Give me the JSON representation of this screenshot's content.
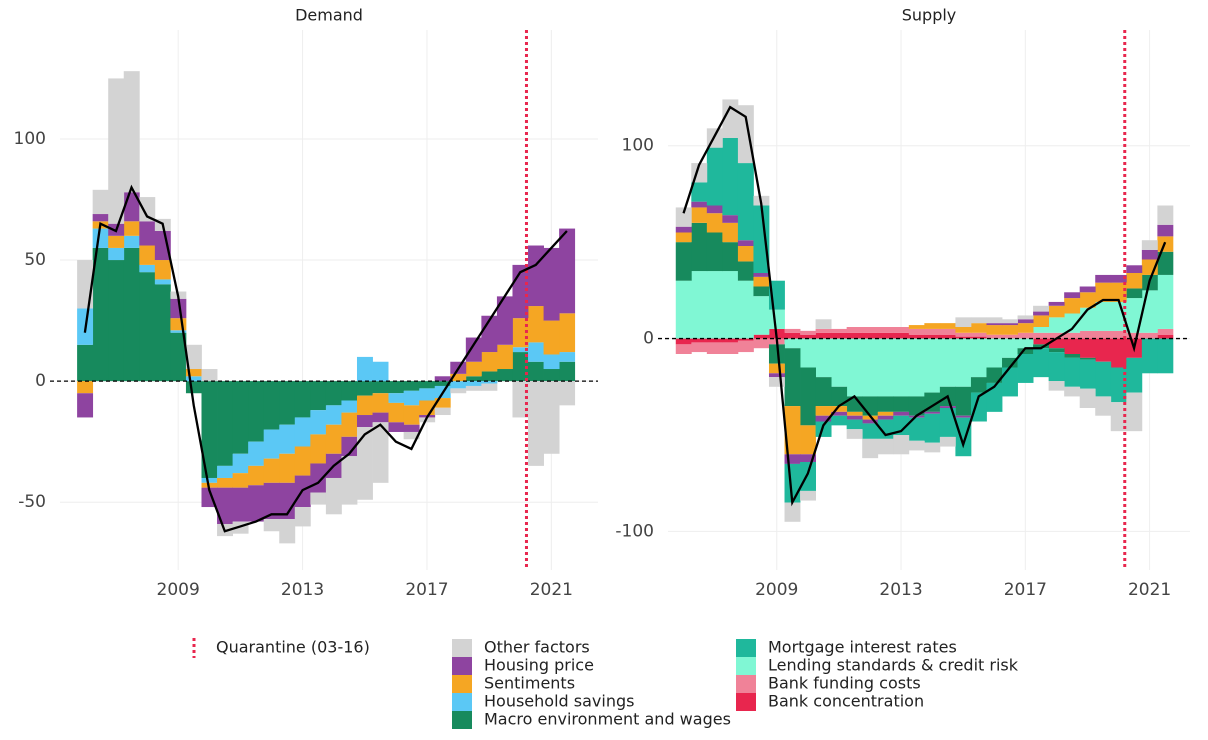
{
  "chart_data": [
    {
      "type": "bar",
      "title": "Demand",
      "x": [
        2006,
        2006.5,
        2007,
        2007.5,
        2008,
        2008.5,
        2009,
        2009.5,
        2010,
        2010.5,
        2011,
        2011.5,
        2012,
        2012.5,
        2013,
        2013.5,
        2014,
        2014.5,
        2015,
        2015.5,
        2016,
        2016.5,
        2017,
        2017.5,
        2018,
        2018.5,
        2019,
        2019.5,
        2020,
        2020.5,
        2021,
        2021.5
      ],
      "series": [
        {
          "name": "Other factors",
          "color": "#d3d3d3",
          "values": [
            20,
            10,
            60,
            50,
            10,
            5,
            3,
            10,
            5,
            -5,
            -5,
            0,
            -5,
            -10,
            -8,
            -5,
            -15,
            -20,
            -30,
            -25,
            0,
            -3,
            -2,
            -3,
            -2,
            -2,
            -3,
            0,
            -15,
            -35,
            -30,
            -10
          ]
        },
        {
          "name": "Housing price",
          "color": "#8e44a0",
          "values": [
            -10,
            3,
            5,
            12,
            10,
            12,
            8,
            0,
            -8,
            -15,
            -14,
            -15,
            -15,
            -15,
            -13,
            -12,
            -10,
            -8,
            -5,
            -4,
            -4,
            -3,
            -1,
            2,
            5,
            10,
            15,
            20,
            22,
            25,
            30,
            35
          ]
        },
        {
          "name": "Sentiments",
          "color": "#f5a623",
          "values": [
            -5,
            3,
            5,
            6,
            8,
            8,
            5,
            3,
            -2,
            -4,
            -6,
            -8,
            -10,
            -12,
            -12,
            -12,
            -12,
            -10,
            -8,
            -8,
            -8,
            -8,
            -6,
            -4,
            3,
            6,
            8,
            10,
            12,
            15,
            14,
            16
          ]
        },
        {
          "name": "Household savings",
          "color": "#5bc8f5",
          "values": [
            15,
            8,
            5,
            5,
            3,
            2,
            1,
            2,
            -2,
            -5,
            -8,
            -10,
            -12,
            -12,
            -12,
            -10,
            -8,
            -5,
            10,
            8,
            -4,
            -6,
            -5,
            -5,
            -3,
            -2,
            -1,
            0,
            2,
            8,
            6,
            4
          ]
        },
        {
          "name": "Macro environment and wages",
          "color": "#178a5d",
          "values": [
            15,
            55,
            50,
            55,
            45,
            40,
            20,
            -5,
            -40,
            -35,
            -30,
            -25,
            -20,
            -18,
            -15,
            -12,
            -10,
            -8,
            -6,
            -5,
            -5,
            -4,
            -3,
            -2,
            0,
            2,
            4,
            5,
            12,
            8,
            5,
            8
          ]
        }
      ],
      "total": {
        "color": "#000000",
        "values": [
          20,
          65,
          62,
          80,
          68,
          65,
          35,
          -10,
          -45,
          -62,
          -60,
          -58,
          -55,
          -55,
          -45,
          -42,
          -35,
          -30,
          -22,
          -18,
          -25,
          -28,
          -15,
          -5,
          5,
          15,
          25,
          35,
          45,
          48,
          55,
          62
        ]
      },
      "xlim": [
        2005.2,
        2022.5
      ],
      "xticks": [
        2009,
        2013,
        2017,
        2021
      ],
      "ylim": [
        -78,
        145
      ],
      "yticks": [
        -50,
        0,
        50,
        100
      ],
      "hline": 0,
      "vline": {
        "x": 2020.2,
        "color": "#e8264e",
        "label": "Quarantine (03-16)"
      },
      "grid": true
    },
    {
      "type": "bar",
      "title": "Supply",
      "x": [
        2006,
        2006.5,
        2007,
        2007.5,
        2008,
        2008.5,
        2009,
        2009.5,
        2010,
        2010.5,
        2011,
        2011.5,
        2012,
        2012.5,
        2013,
        2013.5,
        2014,
        2014.5,
        2015,
        2015.5,
        2016,
        2016.5,
        2017,
        2017.5,
        2018,
        2018.5,
        2019,
        2019.5,
        2020,
        2020.5,
        2021,
        2021.5
      ],
      "series": [
        {
          "name": "Other factors",
          "color": "#d3d3d3",
          "values": [
            10,
            10,
            10,
            20,
            30,
            5,
            -5,
            -10,
            -5,
            5,
            0,
            -5,
            -10,
            -8,
            -10,
            -5,
            -5,
            -5,
            5,
            3,
            3,
            2,
            2,
            3,
            -5,
            -5,
            -10,
            -10,
            -15,
            -20,
            5,
            10
          ]
        },
        {
          "name": "Mortgage interest rates",
          "color": "#1fb89c",
          "values": [
            0,
            10,
            30,
            40,
            40,
            35,
            15,
            -20,
            -15,
            -8,
            -5,
            -5,
            -8,
            -10,
            -10,
            -12,
            -15,
            -15,
            -20,
            -15,
            -15,
            -15,
            -15,
            -15,
            -15,
            -15,
            -15,
            -18,
            -18,
            -18,
            -18,
            -18
          ]
        },
        {
          "name": "Housing price",
          "color": "#8e44a0",
          "values": [
            3,
            3,
            4,
            4,
            3,
            2,
            -2,
            -5,
            -4,
            -3,
            -2,
            -2,
            -2,
            -2,
            -2,
            -1,
            -1,
            -1,
            -1,
            0,
            1,
            1,
            2,
            2,
            2,
            3,
            3,
            4,
            4,
            4,
            5,
            6
          ]
        },
        {
          "name": "Sentiments",
          "color": "#f5a623",
          "values": [
            5,
            8,
            10,
            10,
            8,
            5,
            -5,
            -25,
            -15,
            -5,
            -3,
            -2,
            -2,
            -2,
            0,
            2,
            3,
            3,
            3,
            5,
            5,
            5,
            5,
            6,
            6,
            8,
            8,
            10,
            10,
            8,
            8,
            8
          ]
        },
        {
          "name": "Macro environment and wages",
          "color": "#178a5d",
          "values": [
            20,
            25,
            20,
            15,
            10,
            5,
            -10,
            -30,
            -30,
            -15,
            -10,
            -8,
            -10,
            -8,
            -8,
            -10,
            -10,
            -10,
            -15,
            -8,
            -8,
            -5,
            -3,
            -2,
            -2,
            -2,
            -1,
            0,
            0,
            5,
            8,
            12
          ]
        },
        {
          "name": "Lending standards & credit risk",
          "color": "#80f7d4",
          "values": [
            30,
            35,
            35,
            35,
            30,
            20,
            10,
            -5,
            -15,
            -20,
            -25,
            -30,
            -30,
            -30,
            -30,
            -30,
            -28,
            -25,
            -25,
            -20,
            -15,
            -10,
            -5,
            3,
            8,
            10,
            12,
            15,
            15,
            18,
            22,
            28
          ]
        },
        {
          "name": "Bank funding costs",
          "color": "#f08298",
          "values": [
            -5,
            -5,
            -6,
            -6,
            -6,
            -5,
            -3,
            2,
            2,
            2,
            2,
            3,
            3,
            3,
            3,
            3,
            3,
            3,
            2,
            2,
            2,
            2,
            3,
            3,
            3,
            3,
            4,
            4,
            4,
            3,
            3,
            3
          ]
        },
        {
          "name": "Bank concentration",
          "color": "#e8264e",
          "values": [
            -3,
            -2,
            -2,
            -2,
            -1,
            2,
            5,
            3,
            2,
            3,
            3,
            3,
            3,
            3,
            3,
            2,
            2,
            2,
            1,
            1,
            0,
            0,
            0,
            -3,
            -5,
            -8,
            -10,
            -12,
            -15,
            -10,
            0,
            2
          ]
        }
      ],
      "total": {
        "color": "#000000",
        "values": [
          65,
          90,
          105,
          120,
          115,
          70,
          0,
          -85,
          -70,
          -45,
          -35,
          -30,
          -40,
          -50,
          -48,
          -40,
          -35,
          -30,
          -55,
          -30,
          -25,
          -15,
          -5,
          -5,
          0,
          5,
          15,
          20,
          20,
          -5,
          30,
          50
        ]
      },
      "xlim": [
        2005.5,
        2022.3
      ],
      "xticks": [
        2009,
        2013,
        2017,
        2021
      ],
      "ylim": [
        -120,
        160
      ],
      "yticks": [
        -100,
        0,
        100
      ],
      "hline": 0,
      "vline": {
        "x": 2020.2,
        "color": "#e8264e"
      },
      "grid": true
    }
  ]
}
